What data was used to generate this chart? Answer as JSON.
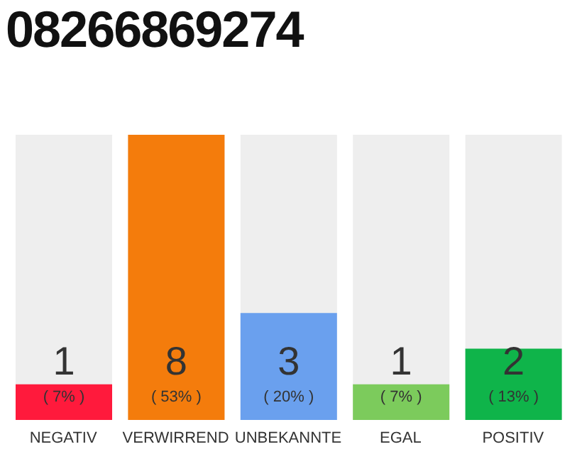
{
  "chart_data": {
    "type": "bar",
    "title": "08266869274",
    "categories": [
      "NEGATIV",
      "VERWIRREND",
      "UNBEKANNTE",
      "EGAL",
      "POSITIV"
    ],
    "values": [
      1,
      8,
      3,
      1,
      2
    ],
    "colors": [
      "#ff1a3c",
      "#f47c0c",
      "#6aa0ee",
      "#7ccb5c",
      "#0fb44a"
    ],
    "annotations": [
      "( 7% )",
      "( 53% )",
      "( 20% )",
      "( 7% )",
      "( 13% )"
    ],
    "data_labels": true,
    "tick_labels": "x"
  }
}
